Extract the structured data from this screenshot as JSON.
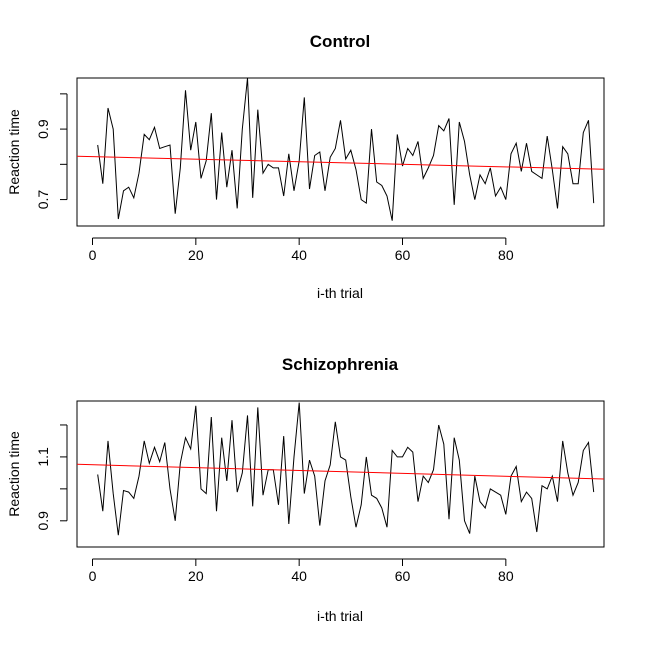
{
  "chart_data": [
    {
      "type": "line",
      "title": "Control",
      "xlabel": "i-th trial",
      "ylabel": "Reaction time",
      "xlim": [
        -3,
        99
      ],
      "ylim": [
        0.625,
        1.045
      ],
      "xticks": [
        0,
        20,
        40,
        60,
        80
      ],
      "xtick_labels": [
        "0",
        "20",
        "40",
        "60",
        "80"
      ],
      "yticks": [
        0.7,
        0.8,
        0.9,
        1.0
      ],
      "ytick_labels": [
        "0.7",
        "",
        "0.9",
        ""
      ],
      "grid": false,
      "legend": "none",
      "series": [
        {
          "color": "#000000",
          "x": [
            1,
            2,
            3,
            4,
            5,
            6,
            7,
            8,
            9,
            10,
            11,
            12,
            13,
            14,
            15,
            16,
            17,
            18,
            19,
            20,
            21,
            22,
            23,
            24,
            25,
            26,
            27,
            28,
            29,
            30,
            31,
            32,
            33,
            34,
            35,
            36,
            37,
            38,
            39,
            40,
            41,
            42,
            43,
            44,
            45,
            46,
            47,
            48,
            49,
            50,
            51,
            52,
            53,
            54,
            55,
            56,
            57,
            58,
            59,
            60,
            61,
            62,
            63,
            64,
            65,
            66,
            67,
            68,
            69,
            70,
            71,
            72,
            73,
            74,
            75,
            76,
            77,
            78,
            79,
            80,
            81,
            82,
            83,
            84,
            85,
            86,
            87,
            88,
            89,
            90,
            91,
            92,
            93,
            94,
            95,
            96,
            97
          ],
          "values": [
            0.855,
            0.745,
            0.96,
            0.9,
            0.645,
            0.725,
            0.735,
            0.705,
            0.775,
            0.885,
            0.87,
            0.905,
            0.845,
            0.85,
            0.855,
            0.66,
            0.79,
            1.01,
            0.84,
            0.92,
            0.76,
            0.81,
            0.945,
            0.7,
            0.89,
            0.735,
            0.84,
            0.675,
            0.9,
            1.045,
            0.705,
            0.955,
            0.775,
            0.8,
            0.79,
            0.79,
            0.71,
            0.83,
            0.725,
            0.81,
            0.99,
            0.73,
            0.825,
            0.835,
            0.725,
            0.82,
            0.845,
            0.925,
            0.815,
            0.84,
            0.785,
            0.7,
            0.69,
            0.9,
            0.75,
            0.74,
            0.71,
            0.64,
            0.885,
            0.795,
            0.845,
            0.825,
            0.865,
            0.76,
            0.79,
            0.825,
            0.91,
            0.895,
            0.93,
            0.685,
            0.92,
            0.865,
            0.77,
            0.7,
            0.77,
            0.745,
            0.79,
            0.71,
            0.735,
            0.7,
            0.83,
            0.86,
            0.78,
            0.86,
            0.78,
            0.77,
            0.76,
            0.88,
            0.785,
            0.675,
            0.85,
            0.83,
            0.745,
            0.745,
            0.89,
            0.925,
            0.69
          ]
        },
        {
          "color": "#ff0000",
          "x": [
            -3,
            99
          ],
          "values": [
            0.823,
            0.786
          ]
        }
      ]
    },
    {
      "type": "line",
      "title": "Schizophrenia",
      "xlabel": "i-th trial",
      "ylabel": "Reaction time",
      "xlim": [
        -3,
        99
      ],
      "ylim": [
        0.818,
        1.275
      ],
      "xticks": [
        0,
        20,
        40,
        60,
        80
      ],
      "xtick_labels": [
        "0",
        "20",
        "40",
        "60",
        "80"
      ],
      "yticks": [
        0.9,
        1.0,
        1.1,
        1.2
      ],
      "ytick_labels": [
        "0.9",
        "",
        "1.1",
        ""
      ],
      "grid": false,
      "legend": "none",
      "series": [
        {
          "color": "#000000",
          "x": [
            1,
            2,
            3,
            4,
            5,
            6,
            7,
            8,
            9,
            10,
            11,
            12,
            13,
            14,
            15,
            16,
            17,
            18,
            19,
            20,
            21,
            22,
            23,
            24,
            25,
            26,
            27,
            28,
            29,
            30,
            31,
            32,
            33,
            34,
            35,
            36,
            37,
            38,
            39,
            40,
            41,
            42,
            43,
            44,
            45,
            46,
            47,
            48,
            49,
            50,
            51,
            52,
            53,
            54,
            55,
            56,
            57,
            58,
            59,
            60,
            61,
            62,
            63,
            64,
            65,
            66,
            67,
            68,
            69,
            70,
            71,
            72,
            73,
            74,
            75,
            76,
            77,
            78,
            79,
            80,
            81,
            82,
            83,
            84,
            85,
            86,
            87,
            88,
            89,
            90,
            91,
            92,
            93,
            94,
            95,
            96,
            97
          ],
          "values": [
            1.045,
            0.93,
            1.15,
            0.985,
            0.855,
            0.995,
            0.99,
            0.97,
            1.04,
            1.15,
            1.08,
            1.13,
            1.085,
            1.145,
            1.0,
            0.9,
            1.08,
            1.16,
            1.125,
            1.26,
            1.0,
            0.985,
            1.225,
            0.93,
            1.16,
            1.025,
            1.215,
            0.99,
            1.05,
            1.23,
            0.945,
            1.255,
            0.98,
            1.06,
            1.06,
            0.95,
            1.165,
            0.89,
            1.1,
            1.27,
            0.985,
            1.09,
            1.04,
            0.885,
            1.025,
            1.075,
            1.21,
            1.1,
            1.09,
            0.975,
            0.88,
            0.95,
            1.1,
            0.98,
            0.97,
            0.94,
            0.88,
            1.12,
            1.1,
            1.1,
            1.13,
            1.115,
            0.96,
            1.04,
            1.02,
            1.06,
            1.2,
            1.14,
            0.905,
            1.16,
            1.09,
            0.9,
            0.86,
            1.04,
            0.96,
            0.94,
            1.0,
            0.99,
            0.98,
            0.92,
            1.04,
            1.07,
            0.96,
            0.99,
            0.97,
            0.865,
            1.01,
            1.0,
            1.04,
            0.96,
            1.15,
            1.05,
            0.98,
            1.02,
            1.12,
            1.145,
            0.99
          ]
        },
        {
          "color": "#ff0000",
          "x": [
            -3,
            99
          ],
          "values": [
            1.077,
            1.031
          ]
        }
      ]
    }
  ]
}
